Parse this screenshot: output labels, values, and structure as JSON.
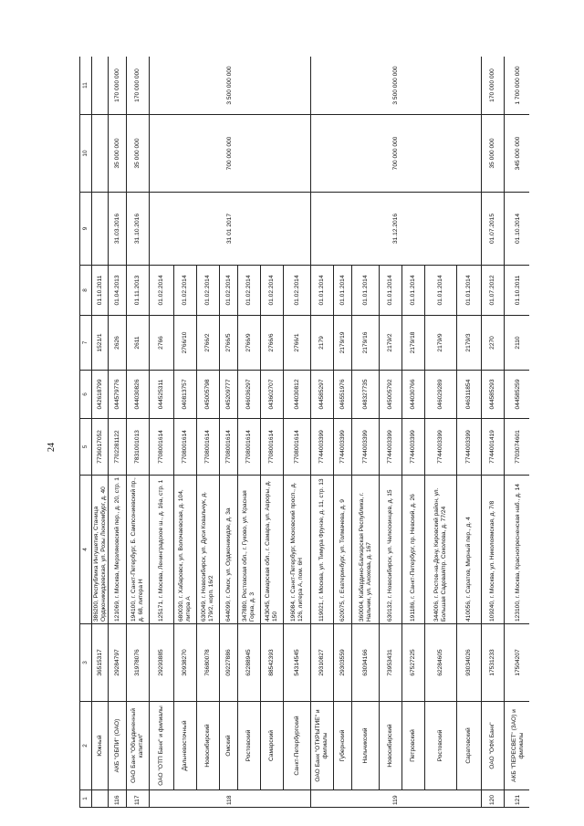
{
  "page_number": "24",
  "header": [
    "1",
    "2",
    "3",
    "4",
    "5",
    "6",
    "7",
    "8",
    "9",
    "10",
    "11"
  ],
  "rows": [
    {
      "n": "",
      "name": "Южный",
      "okpo": "36515317",
      "address": "386200, Республика Ингушетия, Станица Орджоникидзевская, ул. Розы Люксембург, д. 40",
      "inn": "7736017052",
      "bik": "042618799",
      "reg": "1521/1",
      "date_from": "01.10.2011",
      "date_to": "",
      "amount": "",
      "limit": "",
      "cont": true
    },
    {
      "n": "116",
      "name": "АКБ \"ОБПИ\" (ОАО)",
      "okpo": "29284797",
      "address": "121069, г. Москва, Мерзляковский пер., д. 20, стр. 1",
      "inn": "7702281122",
      "bik": "044579776",
      "reg": "2626",
      "date_from": "01.04.2013",
      "date_to": "31.03.2016",
      "amount": "35 000 000",
      "limit": "170 000 000"
    },
    {
      "n": "117",
      "name": "ОАО Банк \"Объединенный капитал\"",
      "okpo": "31978076",
      "address": "194100, г. Санкт-Петербург, Б. Сампсониевский пр., д. 68, литера Н",
      "inn": "7831001013",
      "bik": "044030826",
      "reg": "2611",
      "date_from": "01.11.2013",
      "date_to": "31.10.2016",
      "amount": "35 000 000",
      "limit": "170 000 000"
    },
    {
      "n": "118",
      "name": "ОАО \"ОТП Банк\" и филиалы",
      "okpo": "29293885",
      "address": "125171, г. Москва, Ленинградское ш., д. 16а, стр. 1",
      "inn": "7708001614",
      "bik": "044525311",
      "reg": "2766",
      "date_from": "01.02.2014",
      "date_to": "31 01 2017",
      "amount": "700 000 000",
      "limit": "3 500 000 000"
    },
    {
      "name": "Дальневосточный",
      "okpo": "30938270",
      "address": "680030, г. Хабаровск, ул. Волочаевская, д. 104, литера А",
      "inn": "7708001614",
      "bik": "040813757",
      "reg": "2766/10",
      "date_from": "01.02.2014"
    },
    {
      "name": "Новосибирский",
      "okpo": "76680078",
      "address": "630049, г. Новосибирск, ул. Дуси Ковальчук, д. 179/2, корп. 16/2",
      "inn": "7708001614",
      "bik": "045005798",
      "reg": "2766/2",
      "date_from": "01.02.2014"
    },
    {
      "name": "Омский",
      "okpo": "09227886",
      "address": "644099, г. Омск, ул. Орджоникидзе, д. 3а",
      "inn": "7708001614",
      "bik": "045209777",
      "reg": "2766/5",
      "date_from": "01.02.2014"
    },
    {
      "name": "Ростовский",
      "okpo": "62288945",
      "address": "347880, Ростовская обл., г. Гуково, ул. Красная Горка, д. 3",
      "inn": "7708001614",
      "bik": "046036297",
      "reg": "2766/9",
      "date_from": "01.02.2014"
    },
    {
      "name": "Самарский",
      "okpo": "88542393",
      "address": "443045, Самарская обл., г. Самара, ул. Авроры, д. 150",
      "inn": "7708001614",
      "bik": "043602707",
      "reg": "2766/6",
      "date_from": "01.02.2014"
    },
    {
      "name": "Санкт-Петербургский",
      "okpo": "54314545",
      "address": "196084, г. Санкт-Петербург, Московский просп., д. 126, литера А, пом. 6Н",
      "inn": "7708001614",
      "bik": "044030812",
      "reg": "2766/1",
      "date_from": "01.02.2014"
    },
    {
      "n": "119",
      "name": "ОАО Банк \"ОТКРЫТИЕ\" и филиалы",
      "okpo": "29310827",
      "address": "119021, г. Москва, ул. Тимура Фрунзе, д. 11, стр. 13",
      "inn": "7744003399",
      "bik": "044585297",
      "reg": "2179",
      "date_from": "01.01.2014",
      "date_to": "31.12.2016",
      "amount": "700 000 000",
      "limit": "3 500 000 000"
    },
    {
      "name": "Губернский",
      "okpo": "29303559",
      "address": "620075, г. Екатеринбург, ул. Толмачева, д. 9",
      "inn": "7744003399",
      "bik": "046551976",
      "reg": "2179/19",
      "date_from": "01.01.2014"
    },
    {
      "name": "Нальчикский",
      "okpo": "63094166",
      "address": "360004, Кабардино-Балкарская Республика, г. Нальчик, ул. Ахохова, д. 167",
      "inn": "7744003399",
      "bik": "048327735",
      "reg": "2179/16",
      "date_from": "01.01.2014"
    },
    {
      "name": "Новосибирский",
      "okpo": "73953431",
      "address": "630132, г. Новосибирск, ул. Челюскинцев, д. 15",
      "inn": "7744003399",
      "bik": "045005792",
      "reg": "2179/2",
      "date_from": "01.01.2014"
    },
    {
      "name": "Петровский",
      "okpo": "67527225",
      "address": "191186, г. Санкт-Петербург, пр. Невский, д. 26",
      "inn": "7744003399",
      "bik": "044030766",
      "reg": "2179/18",
      "date_from": "01.01.2014"
    },
    {
      "name": "Ростовский",
      "okpo": "62284605",
      "address": "344006, г. Ростов-на-Дону, Кировский район, ул. Большая Садовая/пр. Соколова, д. 77/24",
      "inn": "7744003399",
      "bik": "046029289",
      "reg": "2179/9",
      "date_from": "01.01.2014"
    },
    {
      "name": "Саратовский",
      "okpo": "93034026",
      "address": "410056, г. Саратов, Мирный пер., д. 4",
      "inn": "7744003399",
      "bik": "046311854",
      "reg": "2179/3",
      "date_from": "01.01.2014"
    },
    {
      "n": "120",
      "name": "ОАО \"ОФК Банк\"",
      "okpo": "17531233",
      "address": "109240, г. Москва, ул. Николоямская, д. 7/8",
      "inn": "7744001419",
      "bik": "044585293",
      "reg": "2270",
      "date_from": "01.07.2012",
      "date_to": "01.07.2015",
      "amount": "35 000 000",
      "limit": "170 000 000"
    },
    {
      "n": "121",
      "name": "АКБ \"ПЕРЕСВЕТ\" (ЗАО) и филиалы",
      "okpo": "17504207",
      "address": "123100, г. Москва, Краснопресненская наб., д. 14",
      "inn": "7703074601",
      "bik": "044585259",
      "reg": "2110",
      "date_from": "01.10.2011",
      "date_to": "01.10.2014",
      "amount": "345 000 000",
      "limit": "1 700 000 000"
    }
  ]
}
